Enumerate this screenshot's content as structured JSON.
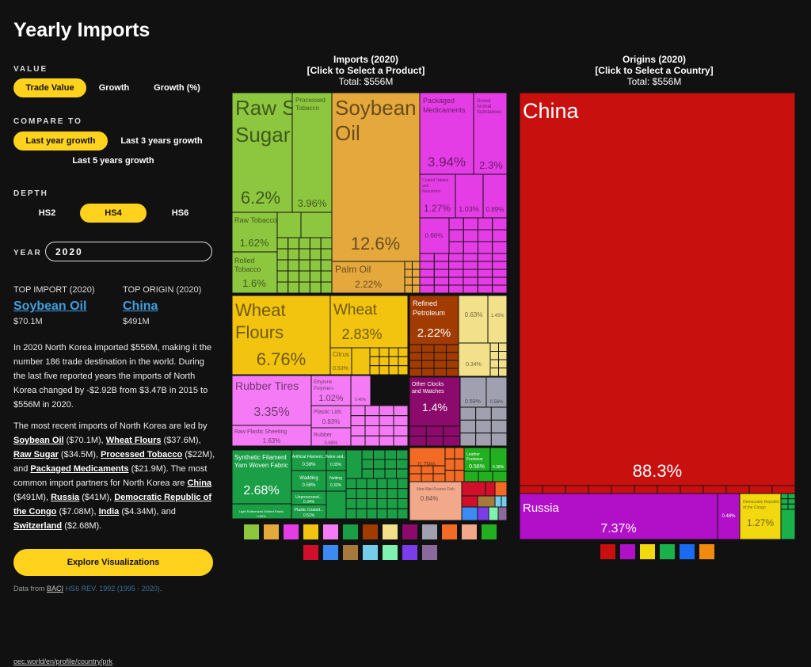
{
  "page_title": "Yearly Imports",
  "value_label": "VALUE",
  "value_options": [
    "Trade Value",
    "Growth",
    "Growth (%)"
  ],
  "compare_label": "COMPARE TO",
  "compare_options": [
    "Last year growth",
    "Last 3 years growth",
    "Last 5 years growth"
  ],
  "depth_label": "DEPTH",
  "depth_options": [
    "HS2",
    "HS4",
    "HS6"
  ],
  "year_label": "YEAR",
  "year_value": "2020",
  "top_import": {
    "label": "TOP IMPORT (2020)",
    "name": "Soybean Oil",
    "value": "$70.1M"
  },
  "top_origin": {
    "label": "TOP ORIGIN (2020)",
    "name": "China",
    "value": "$491M"
  },
  "paragraph1": "In 2020 North Korea imported $556M, making it the number 186 trade destination in the world. During the last five reported years the imports of North Korea changed by -$2.92B from $3.47B in 2015 to $556M in 2020.",
  "paragraph2": {
    "intro": "The most recent imports of North Korea are led by",
    "items": [
      {
        "name": "Soybean Oil",
        "value": "($70.1M)"
      },
      {
        "name": "Wheat Flours",
        "value": "($37.6M)"
      },
      {
        "name": "Raw Sugar",
        "value": "($34.5M)"
      },
      {
        "name": "Processed Tobacco",
        "value": "($22M)"
      },
      {
        "name": "Packaged Medicaments",
        "value": "($21.9M)"
      }
    ],
    "partners_intro": "The most common import partners for North Korea are",
    "partners": [
      {
        "name": "China",
        "value": "($491M)"
      },
      {
        "name": "Russia",
        "value": "($41M)"
      },
      {
        "name": "Democratic Republic of the Congo",
        "value": "($7.08M)"
      },
      {
        "name": "India",
        "value": "($4.34M)"
      },
      {
        "name": "Switzerland",
        "value": "($2.68M)"
      }
    ]
  },
  "explore_button": "Explore Visualizations",
  "source": {
    "prefix": "Data from",
    "name": "BACI",
    "hs": "HS6 REV. 1992 (1995 - 2020)",
    "suffix": "."
  },
  "url": "oec.world/en/profile/country/prk",
  "chart_data": [
    {
      "type": "treemap",
      "title": "Imports (2020)",
      "subtitle": "[Click to Select a Product]",
      "total": "Total: $556M",
      "items": [
        {
          "label": "Raw Sugar",
          "share": "6.2%",
          "color": "#8DC63F"
        },
        {
          "label": "Processed Tobacco",
          "share": "3.96%",
          "color": "#8DC63F"
        },
        {
          "label": "Raw Tobacco",
          "share": "1.62%",
          "color": "#8DC63F"
        },
        {
          "label": "Rolled Tobacco",
          "share": "1.6%",
          "color": "#8DC63F"
        },
        {
          "label": "Soybean Oil",
          "share": "12.6%",
          "color": "#E4A83C"
        },
        {
          "label": "Palm Oil",
          "share": "2.22%",
          "color": "#E4A83C"
        },
        {
          "label": "Packaged Medicaments",
          "share": "3.94%",
          "color": "#E53DE5"
        },
        {
          "label": "Dosed Animal Substances",
          "share": "2.3%",
          "color": "#E53DE5"
        },
        {
          "label": "Coated Tablets and Nebulizers",
          "share": "1.27%",
          "color": "#E53DE5"
        },
        {
          "label": "Wheat Flours",
          "share": "6.76%",
          "color": "#F2C40F"
        },
        {
          "label": "Wheat",
          "share": "2.83%",
          "color": "#F2C40F"
        },
        {
          "label": "Citrus",
          "share": "0.53%",
          "color": "#F2C40F"
        },
        {
          "label": "Refined Petroleum",
          "share": "2.22%",
          "color": "#A13B00"
        },
        {
          "label": "Rubber Tires",
          "share": "3.35%",
          "color": "#F57AF5"
        },
        {
          "label": "Ethylene Polymers",
          "share": "1.02%",
          "color": "#F57AF5"
        },
        {
          "label": "Plastic Lids",
          "share": "0.83%",
          "color": "#F57AF5"
        },
        {
          "label": "Raw Plastic Sheeting",
          "share": "1.63%",
          "color": "#F57AF5"
        },
        {
          "label": "Rubber",
          "share": "0.68%",
          "color": "#F57AF5"
        },
        {
          "label": "Other Clocks and Watches",
          "share": "1.4%",
          "color": "#8B0A6B"
        },
        {
          "label": "Synthetic Filament Yarn Woven Fabric",
          "share": "2.68%",
          "color": "#1A9E46"
        },
        {
          "label": "Leather Footwear",
          "share": "0.56%",
          "color": "#22B020"
        },
        {
          "label": "Non-fillet Frozen Fish",
          "share": "0.84%",
          "color": "#F2A88A"
        }
      ],
      "legend_colors": [
        "#8DC63F",
        "#E4A83C",
        "#E53DE5",
        "#F2C40F",
        "#F57AF5",
        "#1A9E46",
        "#A13B00",
        "#F2E08A",
        "#8B0A6B",
        "#A0A0B0",
        "#F26A24",
        "#F2A88A",
        "#22B020",
        "#D0102B",
        "#3C8BF2",
        "#A57A3A",
        "#74CDEB",
        "#7FF2AF",
        "#7B3DEB",
        "#8A6A9A"
      ]
    },
    {
      "type": "treemap",
      "title": "Origins (2020)",
      "subtitle": "[Click to Select a Country]",
      "total": "Total: $556M",
      "items": [
        {
          "label": "China",
          "share": "88.3%",
          "color": "#C8100F"
        },
        {
          "label": "Russia",
          "share": "7.37%",
          "color": "#B10FC8"
        },
        {
          "label": "Democratic Republic of the Congo",
          "share": "1.27%",
          "color": "#F2D80F"
        },
        {
          "label": "",
          "share": "0.48%",
          "color": "#B10FC8"
        }
      ],
      "legend_colors": [
        "#C8100F",
        "#B10FC8",
        "#F2D80F",
        "#1AB04A",
        "#1A6AF2",
        "#F28A0F"
      ]
    }
  ]
}
